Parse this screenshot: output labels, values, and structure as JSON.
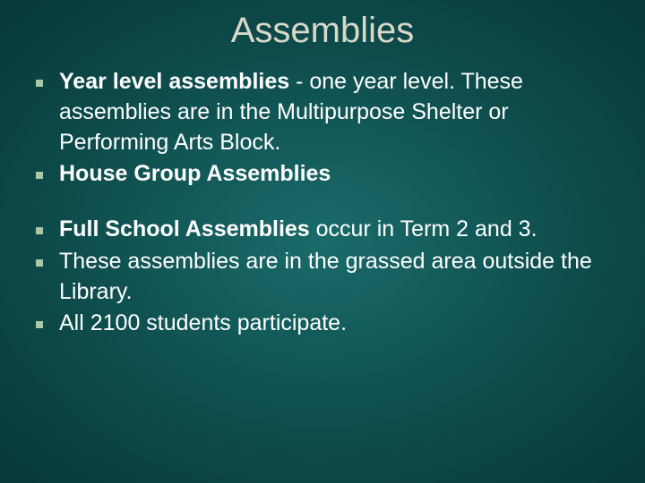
{
  "slide": {
    "title": "Assemblies",
    "background_gradient": {
      "center": "#1a6b6b",
      "mid": "#0d4a4a",
      "edge": "#083838"
    },
    "title_color": "#d8d8c8",
    "text_color": "#ffffff",
    "bullet_color": "#a8c8a8",
    "title_fontsize": 40,
    "body_fontsize": 25,
    "groups": [
      {
        "items": [
          {
            "bold": "Year level assemblies",
            "rest": " - one year level. These assemblies are in the Multipurpose Shelter or Performing Arts Block."
          },
          {
            "bold": "House Group Assemblies",
            "rest": ""
          }
        ]
      },
      {
        "items": [
          {
            "bold": "Full School Assemblies",
            "rest": " occur in Term 2 and 3."
          },
          {
            "bold": "",
            "rest": "These assemblies are in the grassed area outside the Library."
          },
          {
            "bold": "",
            "rest": "All 2100 students participate."
          }
        ]
      }
    ]
  }
}
